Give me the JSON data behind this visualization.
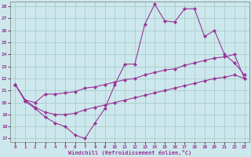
{
  "xlabel": "Windchill (Refroidissement éolien,°C)",
  "bg_color": "#cde8ec",
  "grid_color": "#aacccc",
  "line_color": "#993399",
  "xlim": [
    -0.5,
    23.5
  ],
  "ylim": [
    16.7,
    28.4
  ],
  "yticks": [
    17,
    18,
    19,
    20,
    21,
    22,
    23,
    24,
    25,
    26,
    27,
    28
  ],
  "xticks": [
    0,
    1,
    2,
    3,
    4,
    5,
    6,
    7,
    8,
    9,
    10,
    11,
    12,
    13,
    14,
    15,
    16,
    17,
    18,
    19,
    20,
    21,
    22,
    23
  ],
  "curve1_x": [
    0,
    1,
    2,
    3,
    4,
    5,
    6,
    7,
    8,
    9,
    10,
    11,
    12,
    13,
    14,
    15,
    16,
    17,
    18,
    19,
    20,
    21,
    22,
    23
  ],
  "curve1_y": [
    21.5,
    20.1,
    19.5,
    18.8,
    18.3,
    18.0,
    17.3,
    17.0,
    18.3,
    19.5,
    21.5,
    23.2,
    23.2,
    26.5,
    28.2,
    26.8,
    26.7,
    27.8,
    27.8,
    25.5,
    26.0,
    24.0,
    23.3,
    22.3
  ],
  "curve2_x": [
    0,
    1,
    2,
    3,
    4,
    5,
    6,
    7,
    8,
    9,
    10,
    11,
    12,
    13,
    14,
    15,
    16,
    17,
    18,
    19,
    20,
    21,
    22,
    23
  ],
  "curve2_y": [
    21.5,
    20.2,
    20.0,
    20.7,
    20.7,
    20.8,
    20.9,
    21.2,
    21.3,
    21.5,
    21.7,
    21.9,
    22.0,
    22.3,
    22.5,
    22.7,
    22.8,
    23.1,
    23.3,
    23.5,
    23.7,
    23.8,
    24.0,
    22.0
  ],
  "curve3_x": [
    0,
    1,
    2,
    3,
    4,
    5,
    6,
    7,
    8,
    9,
    10,
    11,
    12,
    13,
    14,
    15,
    16,
    17,
    18,
    19,
    20,
    21,
    22,
    23
  ],
  "curve3_y": [
    21.5,
    20.2,
    19.6,
    19.2,
    19.0,
    19.0,
    19.1,
    19.4,
    19.6,
    19.8,
    20.0,
    20.2,
    20.4,
    20.6,
    20.8,
    21.0,
    21.2,
    21.4,
    21.6,
    21.8,
    22.0,
    22.1,
    22.3,
    22.0
  ]
}
